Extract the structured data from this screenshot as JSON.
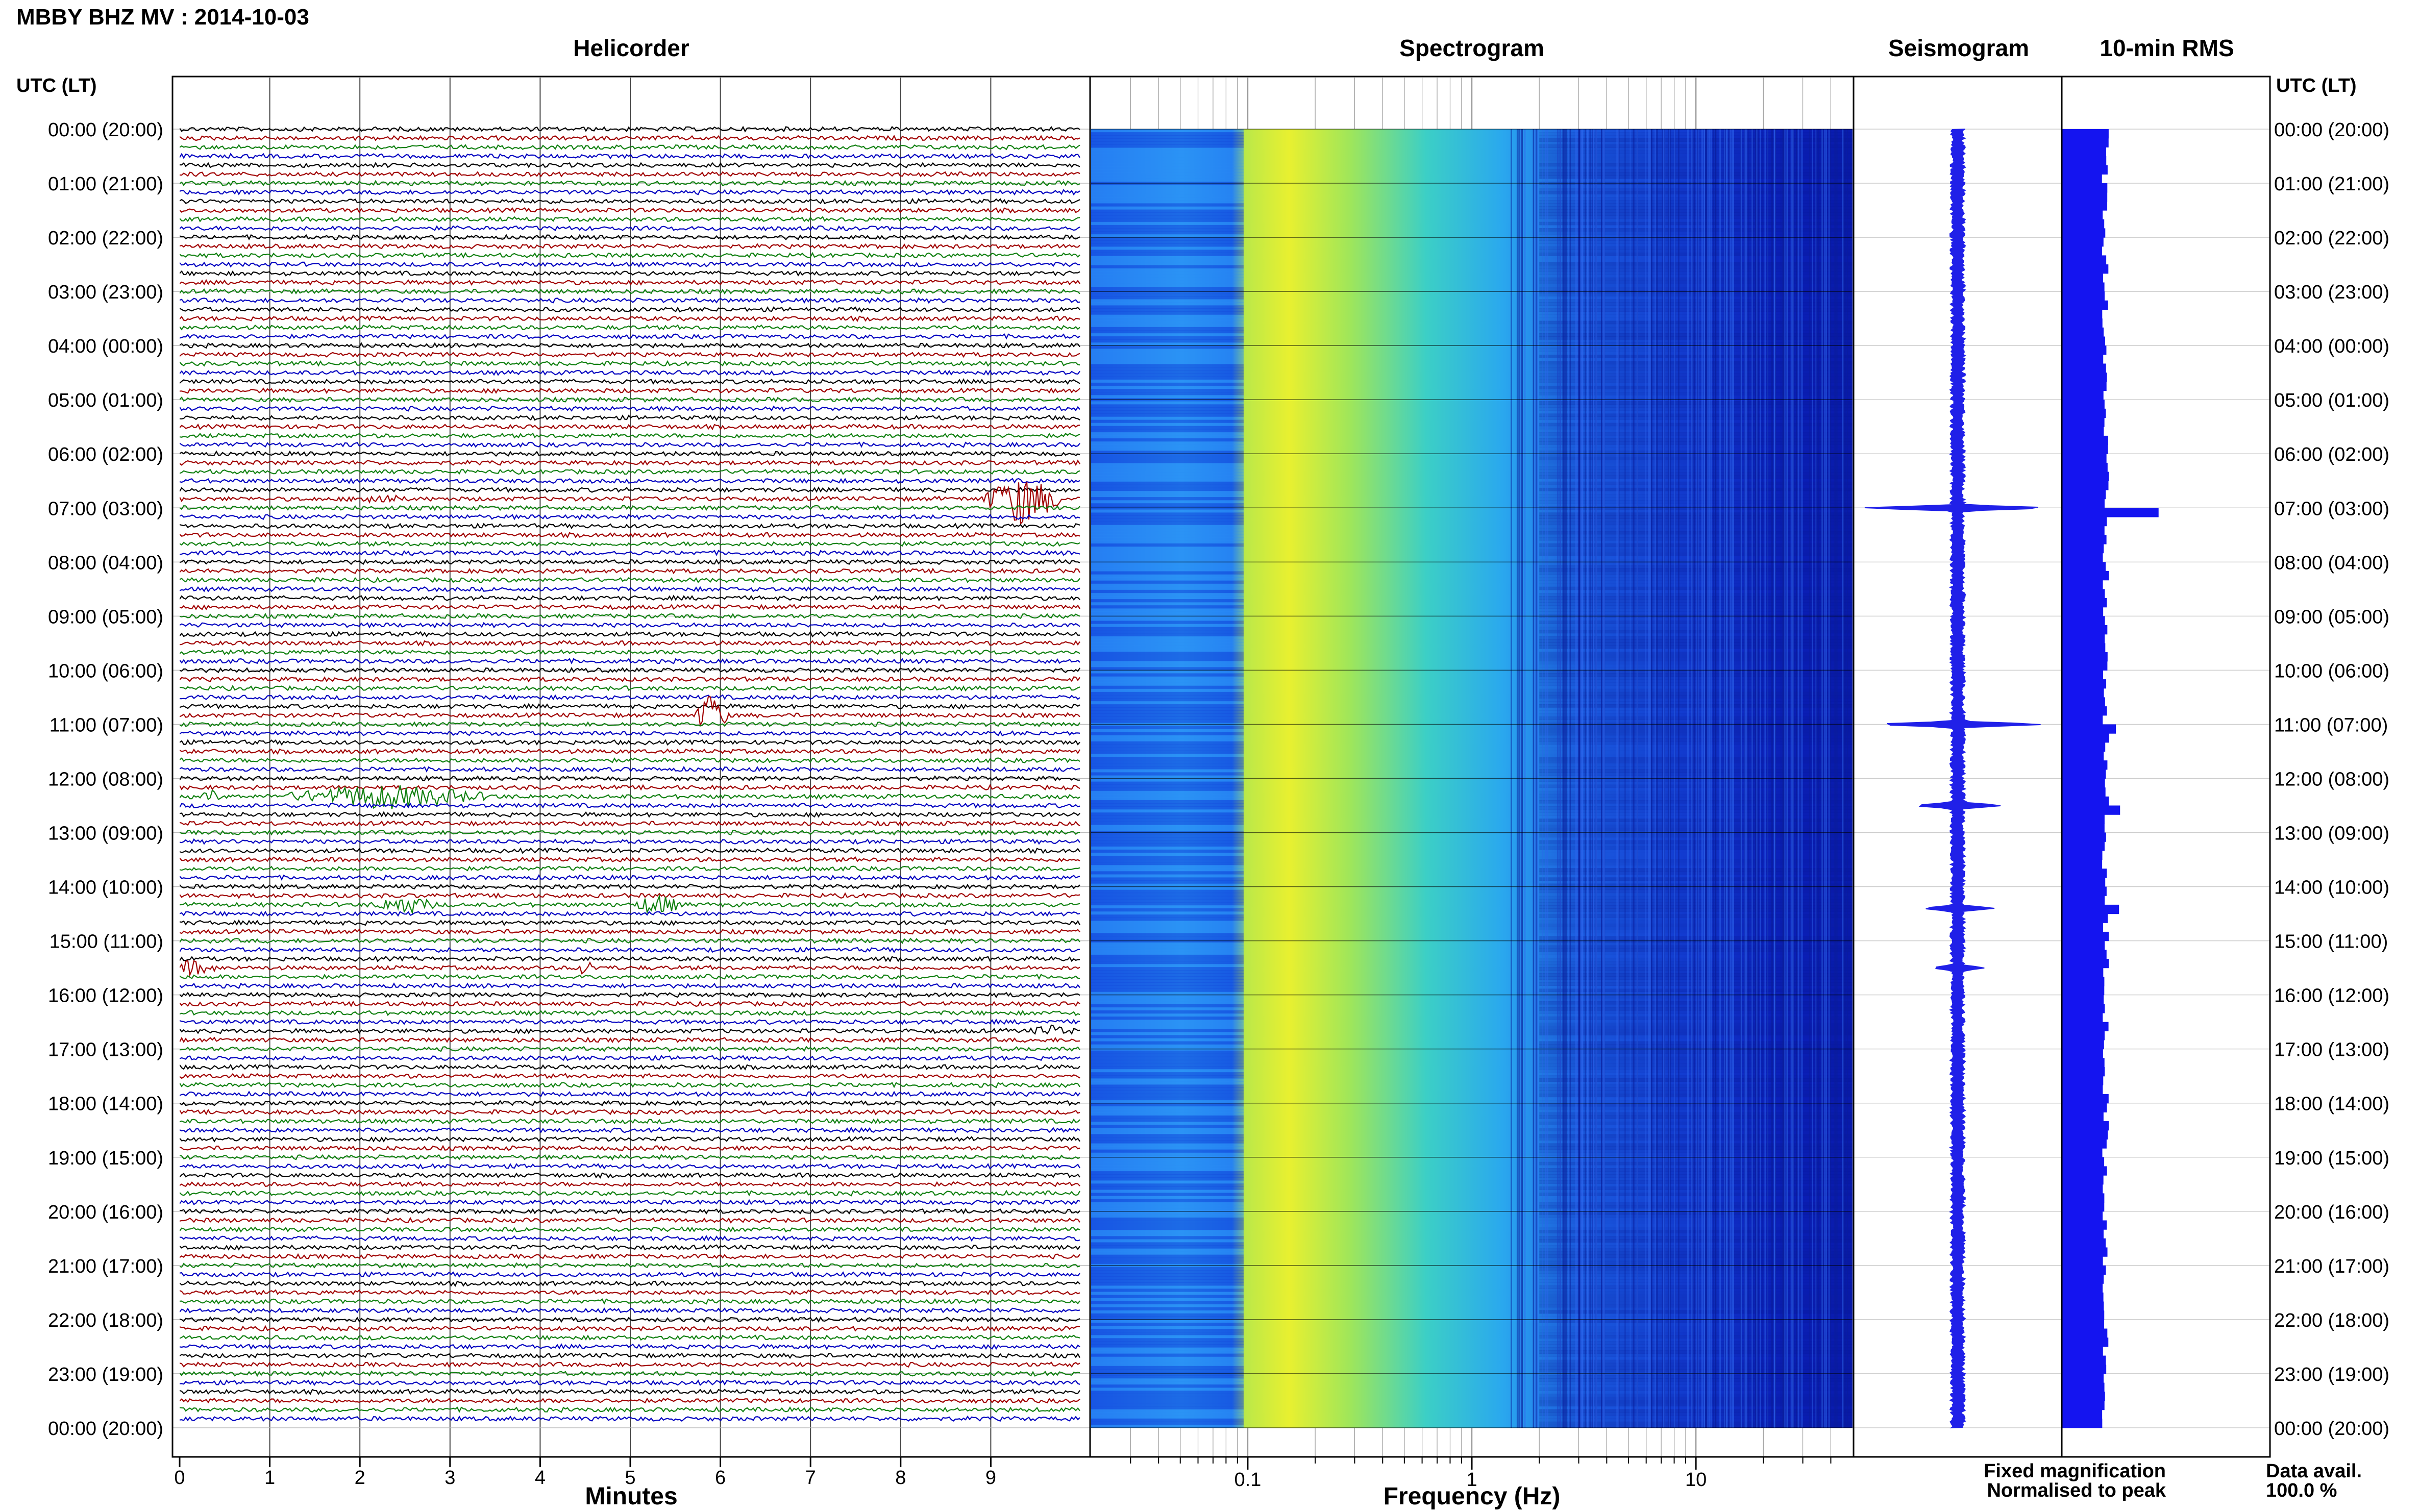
{
  "header": {
    "title": "MBBY BHZ MV : 2014-10-03",
    "utc_label_left": "UTC (LT)",
    "utc_label_right": "UTC (LT)"
  },
  "panels": {
    "helicorder": "Helicorder",
    "spectrogram": "Spectrogram",
    "seismogram": "Seismogram",
    "rms": "10-min RMS"
  },
  "legend": {
    "fixed": "Fixed magnification",
    "normalised": "Normalised to peak",
    "fixed_color": "#1010e8",
    "normalised_color": "#e01010"
  },
  "data_avail": {
    "label": "Data avail.",
    "value": "100.0 %"
  },
  "chart_data": [
    {
      "type": "line",
      "name": "helicorder",
      "title": "Helicorder",
      "xlabel": "Minutes",
      "xlim": [
        0,
        10
      ],
      "x_ticks": [
        "0",
        "1",
        "2",
        "3",
        "4",
        "5",
        "6",
        "7",
        "8",
        "9"
      ],
      "rows_per_hour": 6,
      "trace_colors": [
        "#000000",
        "#a00000",
        "#108010",
        "#0000c0"
      ],
      "row_labels": [
        "00:00 (20:00)",
        "01:00 (21:00)",
        "02:00 (22:00)",
        "03:00 (23:00)",
        "04:00 (00:00)",
        "05:00 (01:00)",
        "06:00 (02:00)",
        "07:00 (03:00)",
        "08:00 (04:00)",
        "09:00 (05:00)",
        "10:00 (06:00)",
        "11:00 (07:00)",
        "12:00 (08:00)",
        "13:00 (09:00)",
        "14:00 (10:00)",
        "15:00 (11:00)",
        "16:00 (12:00)",
        "17:00 (13:00)",
        "18:00 (14:00)",
        "19:00 (15:00)",
        "20:00 (16:00)",
        "21:00 (17:00)",
        "22:00 (18:00)",
        "23:00 (19:00)",
        "00:00 (20:00)"
      ],
      "events": [
        {
          "row": 41,
          "minute": 9.35,
          "amp": 3.2,
          "dur": 0.5
        },
        {
          "row": 41,
          "minute": 2.2,
          "amp": 0.6,
          "dur": 0.3
        },
        {
          "row": 65,
          "minute": 5.9,
          "amp": 3.0,
          "dur": 0.2
        },
        {
          "row": 74,
          "minute": 0.35,
          "amp": 0.8,
          "dur": 0.1
        },
        {
          "row": 74,
          "minute": 2.3,
          "amp": 1.4,
          "dur": 1.3
        },
        {
          "row": 86,
          "minute": 2.5,
          "amp": 1.0,
          "dur": 0.4
        },
        {
          "row": 86,
          "minute": 5.3,
          "amp": 1.2,
          "dur": 0.3
        },
        {
          "row": 93,
          "minute": 0.15,
          "amp": 0.8,
          "dur": 0.3
        },
        {
          "row": 93,
          "minute": 4.5,
          "amp": 0.8,
          "dur": 0.15
        },
        {
          "row": 100,
          "minute": 9.7,
          "amp": 0.6,
          "dur": 0.3
        }
      ]
    },
    {
      "type": "heatmap",
      "name": "spectrogram",
      "title": "Spectrogram",
      "xlabel": "Frequency (Hz)",
      "xscale": "log",
      "xlim": [
        0.02,
        50
      ],
      "x_ticks": [
        "0.1",
        "1",
        "10"
      ]
    },
    {
      "type": "line",
      "name": "seismogram",
      "title": "Seismogram",
      "spikes": [
        {
          "hour": 7.0,
          "amp": 0.9
        },
        {
          "hour": 11.0,
          "amp": 0.8
        },
        {
          "hour": 12.5,
          "amp": 0.4
        },
        {
          "hour": 14.4,
          "amp": 0.3
        },
        {
          "hour": 15.5,
          "amp": 0.2
        }
      ]
    },
    {
      "type": "bar",
      "name": "rms",
      "title": "10-min RMS",
      "bar_color": "#1414f0",
      "baseline_level": 0.42,
      "peaks": [
        {
          "hour": 7.0,
          "value": 0.93
        },
        {
          "hour": 11.0,
          "value": 0.52
        },
        {
          "hour": 12.5,
          "value": 0.56
        },
        {
          "hour": 14.4,
          "value": 0.55
        }
      ]
    }
  ]
}
